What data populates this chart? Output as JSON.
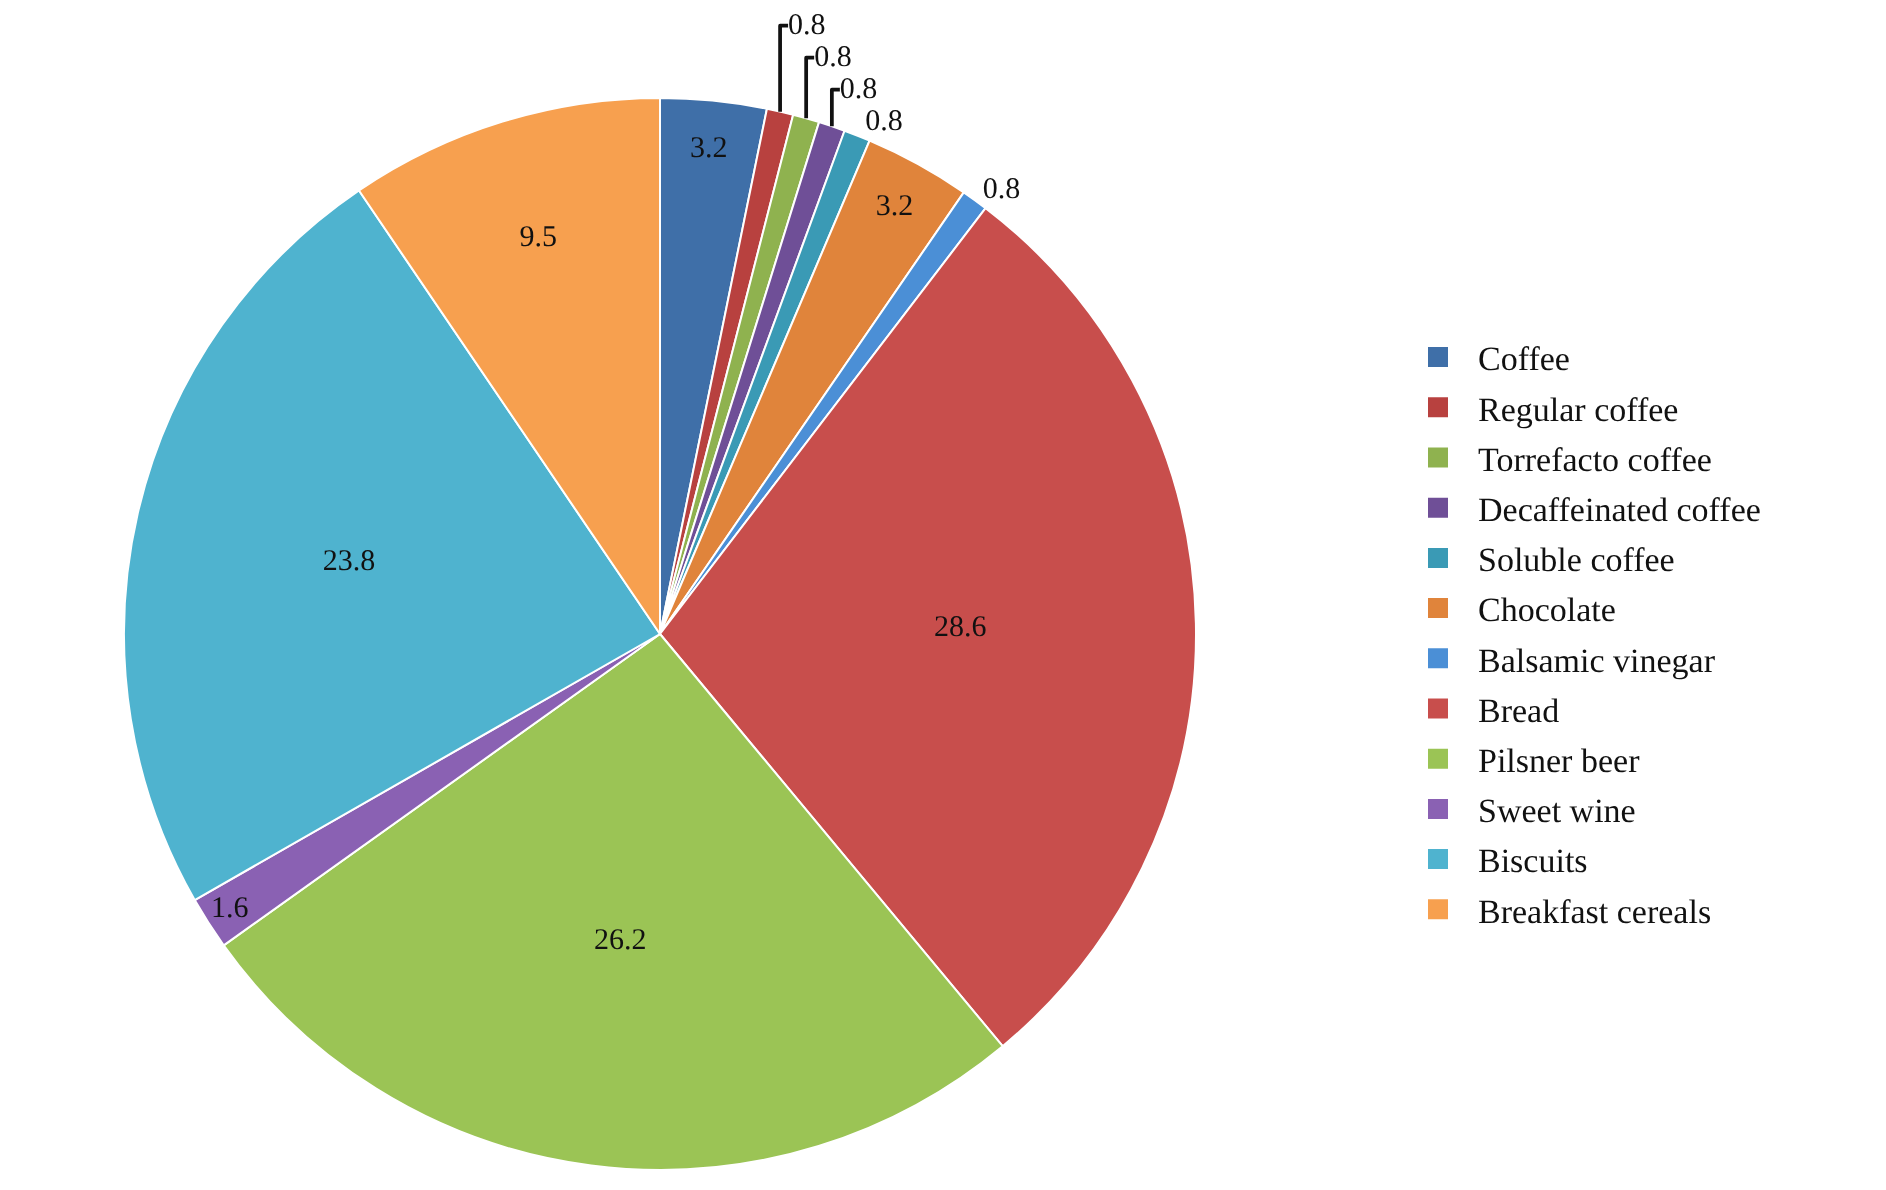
{
  "chart_data": {
    "type": "pie",
    "categories": [
      "Coffee",
      "Regular coffee",
      "Torrefacto coffee",
      "Decaffeinated coffee",
      "Soluble coffee",
      "Chocolate",
      "Balsamic vinegar",
      "Bread",
      "Pilsner beer",
      "Sweet wine",
      "Biscuits",
      "Breakfast cereals"
    ],
    "values": [
      3.2,
      0.8,
      0.8,
      0.8,
      0.8,
      3.2,
      0.8,
      28.6,
      26.2,
      1.6,
      23.8,
      9.5
    ],
    "colors": [
      "#3f6fa8",
      "#b8413f",
      "#8fb24f",
      "#6f4f97",
      "#3a9ab5",
      "#e0843b",
      "#4b8fd6",
      "#c84e4c",
      "#9bc455",
      "#8a61b3",
      "#4fb3cf",
      "#f7a04f"
    ],
    "data_labels": true,
    "legend": "right"
  }
}
